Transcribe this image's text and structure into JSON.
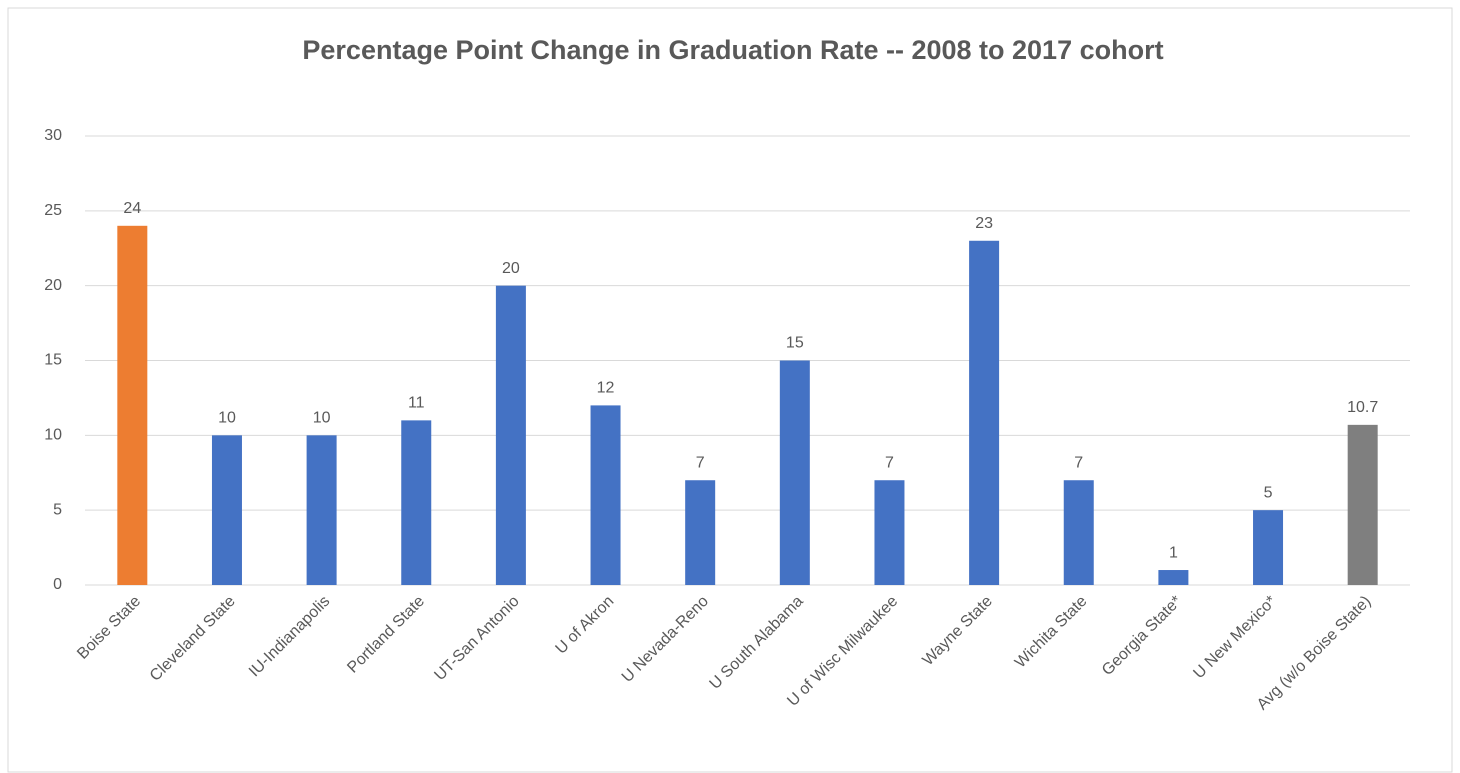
{
  "chart_data": {
    "type": "bar",
    "title": "Percentage Point Change in Graduation Rate -- 2008 to 2017 cohort",
    "categories": [
      "Boise State",
      "Cleveland State",
      "IU-Indianapolis",
      "Portland State",
      "UT-San Antonio",
      "U of Akron",
      "U Nevada-Reno",
      "U South Alabama",
      "U of Wisc Milwaukee",
      "Wayne State",
      "Wichita State",
      "Georgia State*",
      "U New Mexico*",
      "Avg (w/o Boise State)"
    ],
    "values": [
      24,
      10,
      10,
      11,
      20,
      12,
      7,
      15,
      7,
      23,
      7,
      1,
      5,
      10.7
    ],
    "colors": [
      "#ed7d31",
      "#4472c4",
      "#4472c4",
      "#4472c4",
      "#4472c4",
      "#4472c4",
      "#4472c4",
      "#4472c4",
      "#4472c4",
      "#4472c4",
      "#4472c4",
      "#4472c4",
      "#4472c4",
      "#7f7f7f"
    ],
    "ylim": [
      0,
      30
    ],
    "yticks": [
      0,
      5,
      10,
      15,
      20,
      25,
      30
    ],
    "grid": true
  }
}
